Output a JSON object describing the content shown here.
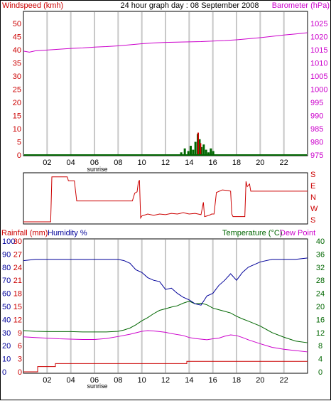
{
  "header": {
    "left_label": "Windspeed (kmh)",
    "title": "24 hour graph day : 08 September 2008",
    "right_label": "Barometer (hPa)"
  },
  "colors": {
    "red": "#cc0000",
    "magenta": "#cc00cc",
    "green": "#006600",
    "blue": "#000099",
    "grid": "#c8c8c8"
  },
  "time_ticks": [
    "02",
    "04",
    "06",
    "08",
    "10",
    "12",
    "14",
    "16",
    "18",
    "20",
    "22"
  ],
  "sunrise_label": "sunrise",
  "chart_data": [
    {
      "type": "line",
      "id": "wind-barometer",
      "y_left_ticks": [
        0,
        5,
        10,
        15,
        20,
        25,
        30,
        35,
        40,
        45,
        50
      ],
      "y_right_ticks": [
        975,
        980,
        985,
        990,
        995,
        1000,
        1005,
        1010,
        1015,
        1020,
        1025
      ],
      "ylim_left": [
        0,
        50
      ],
      "ylim_right": [
        975,
        1025
      ],
      "xlim": [
        0,
        24
      ],
      "series": [
        {
          "name": "Barometer (hPa)",
          "axis": "right",
          "color": "#cc00cc",
          "x": [
            0,
            0.5,
            1,
            2,
            3,
            4,
            5,
            6,
            7,
            8,
            9,
            10,
            11,
            12,
            13,
            14,
            15,
            16,
            17,
            18,
            19,
            20,
            21,
            22,
            23,
            24
          ],
          "y": [
            1014.5,
            1014.1,
            1014.6,
            1014.9,
            1015.2,
            1015.5,
            1015.7,
            1016.0,
            1016.2,
            1016.5,
            1016.9,
            1017.3,
            1017.6,
            1017.8,
            1017.9,
            1018.0,
            1018.1,
            1018.3,
            1018.5,
            1018.8,
            1019.2,
            1019.6,
            1020.1,
            1020.6,
            1021.0,
            1021.5
          ]
        },
        {
          "name": "Windspeed (kmh)",
          "axis": "left",
          "color": "#006600",
          "bars_x": [
            13.3,
            13.6,
            13.9,
            14.1,
            14.3,
            14.5,
            14.7,
            14.85,
            15.0,
            15.2,
            15.4,
            15.6,
            15.8,
            16.0
          ],
          "bars_y": [
            1,
            2.5,
            1.5,
            3.5,
            2,
            5,
            8,
            6,
            3,
            4,
            2,
            1,
            2.5,
            1.5
          ],
          "gust_x": [
            14.7,
            14.9
          ],
          "gust_y": [
            8.5,
            4.5
          ]
        }
      ]
    },
    {
      "type": "line",
      "id": "wind-direction",
      "y_ticks": [
        "S",
        "E",
        "N",
        "W",
        "S"
      ],
      "xlim": [
        0,
        24
      ],
      "series": [
        {
          "name": "Wind direction",
          "color": "#cc0000",
          "x": [
            0,
            2.3,
            2.4,
            3.7,
            3.8,
            4.3,
            4.5,
            9.2,
            9.4,
            9.6,
            9.7,
            9.8,
            9.9,
            10.0,
            10.5,
            11,
            11.5,
            12,
            12.5,
            13,
            13.5,
            14,
            14.5,
            15,
            15.2,
            15.3,
            15.5,
            15.7,
            15.9,
            16.1,
            16.3,
            16.8,
            17.3,
            17.5,
            17.6,
            17.7,
            18.7,
            18.8,
            18.9,
            19.1,
            19.2,
            24
          ],
          "y": [
            360,
            360,
            15,
            15,
            45,
            45,
            200,
            200,
            140,
            130,
            60,
            40,
            330,
            315,
            300,
            310,
            300,
            305,
            295,
            300,
            290,
            300,
            295,
            305,
            210,
            320,
            315,
            310,
            300,
            300,
            135,
            115,
            120,
            125,
            300,
            320,
            320,
            50,
            90,
            70,
            125,
            125
          ]
        }
      ]
    },
    {
      "type": "line",
      "id": "rain-humidity-temperature",
      "headers": {
        "rainfall": "Rainfall (mm)",
        "humidity": "Humidity %",
        "temperature": "Temperature (°C)",
        "dewpoint": "Dew Point"
      },
      "y_humidity_ticks": [
        0,
        10,
        20,
        30,
        40,
        50,
        60,
        70,
        80,
        90,
        100
      ],
      "y_rain_ticks": [
        0,
        3,
        6,
        9,
        12,
        15,
        18,
        21,
        24,
        27,
        30
      ],
      "y_temp_ticks": [
        0,
        4,
        8,
        12,
        16,
        20,
        24,
        28,
        32,
        36,
        40
      ],
      "ylim_temp": [
        0,
        40
      ],
      "xlim": [
        0,
        24
      ],
      "series": [
        {
          "name": "Humidity %",
          "axis": "humidity",
          "color": "#000099",
          "x": [
            0,
            1,
            2,
            3,
            4,
            5,
            6,
            7,
            8,
            8.5,
            9,
            9.5,
            10,
            10.5,
            11,
            11.5,
            12,
            12.5,
            13,
            13.5,
            14,
            14.5,
            15,
            15.5,
            16,
            16.5,
            17,
            17.5,
            18,
            18.5,
            19,
            20,
            21,
            22,
            23,
            24
          ],
          "y": [
            85,
            86,
            86,
            86,
            86,
            86,
            86,
            86,
            86,
            85,
            83,
            78,
            76,
            72,
            70,
            69,
            63,
            64,
            60,
            57,
            55,
            52,
            51,
            58,
            60,
            66,
            70,
            75,
            70,
            76,
            80,
            84,
            86,
            86,
            86,
            87
          ]
        },
        {
          "name": "Temperature (°C)",
          "axis": "temp",
          "color": "#006600",
          "x": [
            0,
            1,
            2,
            3,
            4,
            5,
            6,
            7,
            8,
            8.5,
            9,
            9.5,
            10,
            10.5,
            11,
            11.5,
            12,
            12.5,
            13,
            13.5,
            14,
            14.5,
            15,
            15.5,
            16,
            16.5,
            17,
            17.5,
            18,
            18.5,
            19,
            20,
            21,
            22,
            23,
            24
          ],
          "y": [
            12.6,
            12.4,
            12.3,
            12.3,
            12.3,
            12.2,
            12.2,
            12.2,
            12.4,
            12.8,
            13.4,
            14.4,
            15.6,
            16.6,
            17.8,
            18.8,
            19.3,
            19.8,
            20.2,
            21.0,
            21.6,
            20.8,
            21.0,
            20.5,
            19.5,
            19.0,
            18.5,
            18.0,
            17.0,
            16.2,
            15.5,
            14.0,
            12.0,
            10.6,
            9.4,
            8.9
          ]
        },
        {
          "name": "Dew Point",
          "axis": "temp",
          "color": "#cc00cc",
          "x": [
            0,
            1,
            2,
            3,
            4,
            5,
            6,
            7,
            8,
            9,
            10,
            10.5,
            11,
            11.5,
            12,
            12.5,
            13,
            13.5,
            14,
            14.5,
            15,
            15.5,
            16,
            16.5,
            17,
            17.5,
            18,
            18.5,
            19,
            20,
            21,
            22,
            23,
            24
          ],
          "y": [
            10.7,
            10.5,
            10.3,
            10.1,
            10.0,
            9.9,
            9.9,
            10.2,
            10.8,
            11.5,
            12.4,
            12.6,
            12.5,
            12.3,
            12.1,
            11.7,
            11.4,
            11.1,
            10.5,
            10.2,
            10.0,
            9.8,
            10.1,
            10.3,
            10.9,
            11.3,
            11.1,
            10.5,
            9.8,
            8.6,
            7.5,
            6.9,
            6.5,
            6.1
          ]
        },
        {
          "name": "Rainfall (mm)",
          "axis": "rain",
          "color": "#cc0000",
          "x": [
            0,
            1.2,
            1.2,
            2.7,
            2.7,
            13.8,
            13.8,
            24
          ],
          "y": [
            0,
            0,
            1.2,
            1.2,
            1.9,
            1.9,
            2.4,
            2.4
          ]
        }
      ]
    }
  ]
}
